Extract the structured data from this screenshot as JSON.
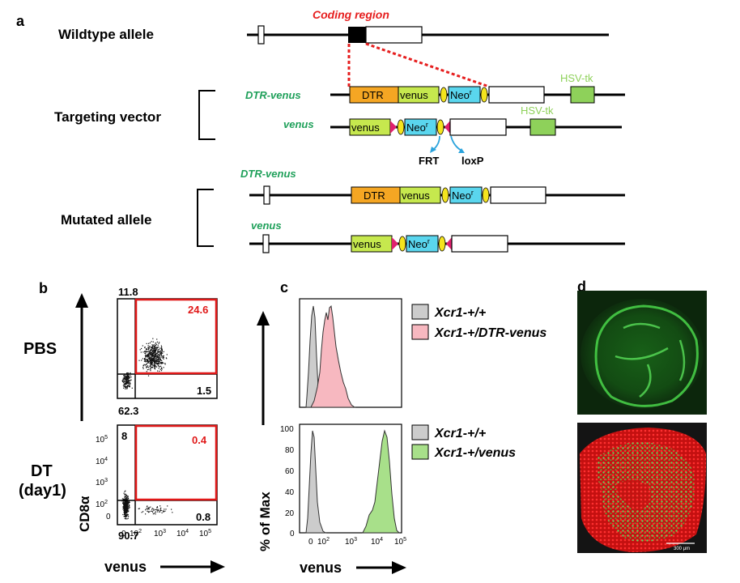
{
  "panel_a": {
    "letter": "a",
    "wildtype_label": "Wildtype allele",
    "coding_region_label": "Coding region",
    "targeting_label": "Targeting vector",
    "mutated_label": "Mutated allele",
    "dtr_venus_label": "DTR-venus",
    "venus_label": "venus",
    "dtr": "DTR",
    "venus": "venus",
    "neo": "Neo",
    "neo_sup": "r",
    "hsv_tk": "HSV-tk",
    "frt": "FRT",
    "loxp": "loxP",
    "colors": {
      "dtr": "#f5a623",
      "venus": "#c6e84e",
      "neo": "#5ad6ee",
      "frt": "#f5e41e",
      "loxp": "#e0206e",
      "hsv": "#8ed15a",
      "coding": "#e61e1e",
      "label_green": "#1fa05a"
    }
  },
  "panel_b": {
    "letter": "b",
    "row1_label": "PBS",
    "row2_label_1": "DT",
    "row2_label_2": "(day1)",
    "y_axis_label": "CD8α",
    "x_axis_label": "venus",
    "pbs": {
      "top_left": "11.8",
      "top_right": "24.6",
      "bottom_right": "1.5",
      "bottom_left": "62.3"
    },
    "dt": {
      "top_left": "8",
      "top_right": "0.4",
      "bottom_right": "0.8",
      "bottom_left": "90.7"
    },
    "y_ticks": [
      "10",
      "10",
      "10",
      "10",
      "0"
    ],
    "y_tick_exp": [
      "5",
      "4",
      "3",
      "2",
      ""
    ],
    "x_ticks": [
      "0",
      "10",
      "10",
      "10",
      "10"
    ],
    "x_tick_exp": [
      "",
      "2",
      "3",
      "4",
      "5"
    ]
  },
  "panel_c": {
    "letter": "c",
    "y_axis_label": "% of Max",
    "x_axis_label": "venus",
    "legend_top": [
      "Xcr1-+/+",
      "Xcr1-+/DTR-venus"
    ],
    "legend_bottom": [
      "Xcr1-+/+",
      "Xcr1-+/venus"
    ],
    "y_ticks": [
      "100",
      "80",
      "60",
      "40",
      "20",
      "0"
    ],
    "x_ticks": [
      "0",
      "10",
      "10",
      "10",
      "10"
    ],
    "x_tick_exp": [
      "",
      "2",
      "3",
      "4",
      "5"
    ],
    "colors": {
      "wt": "#cccccc",
      "dtr": "#f7b8c0",
      "venus": "#a8e08a"
    }
  },
  "panel_d": {
    "letter": "d",
    "scale_bar": "300 μm"
  }
}
